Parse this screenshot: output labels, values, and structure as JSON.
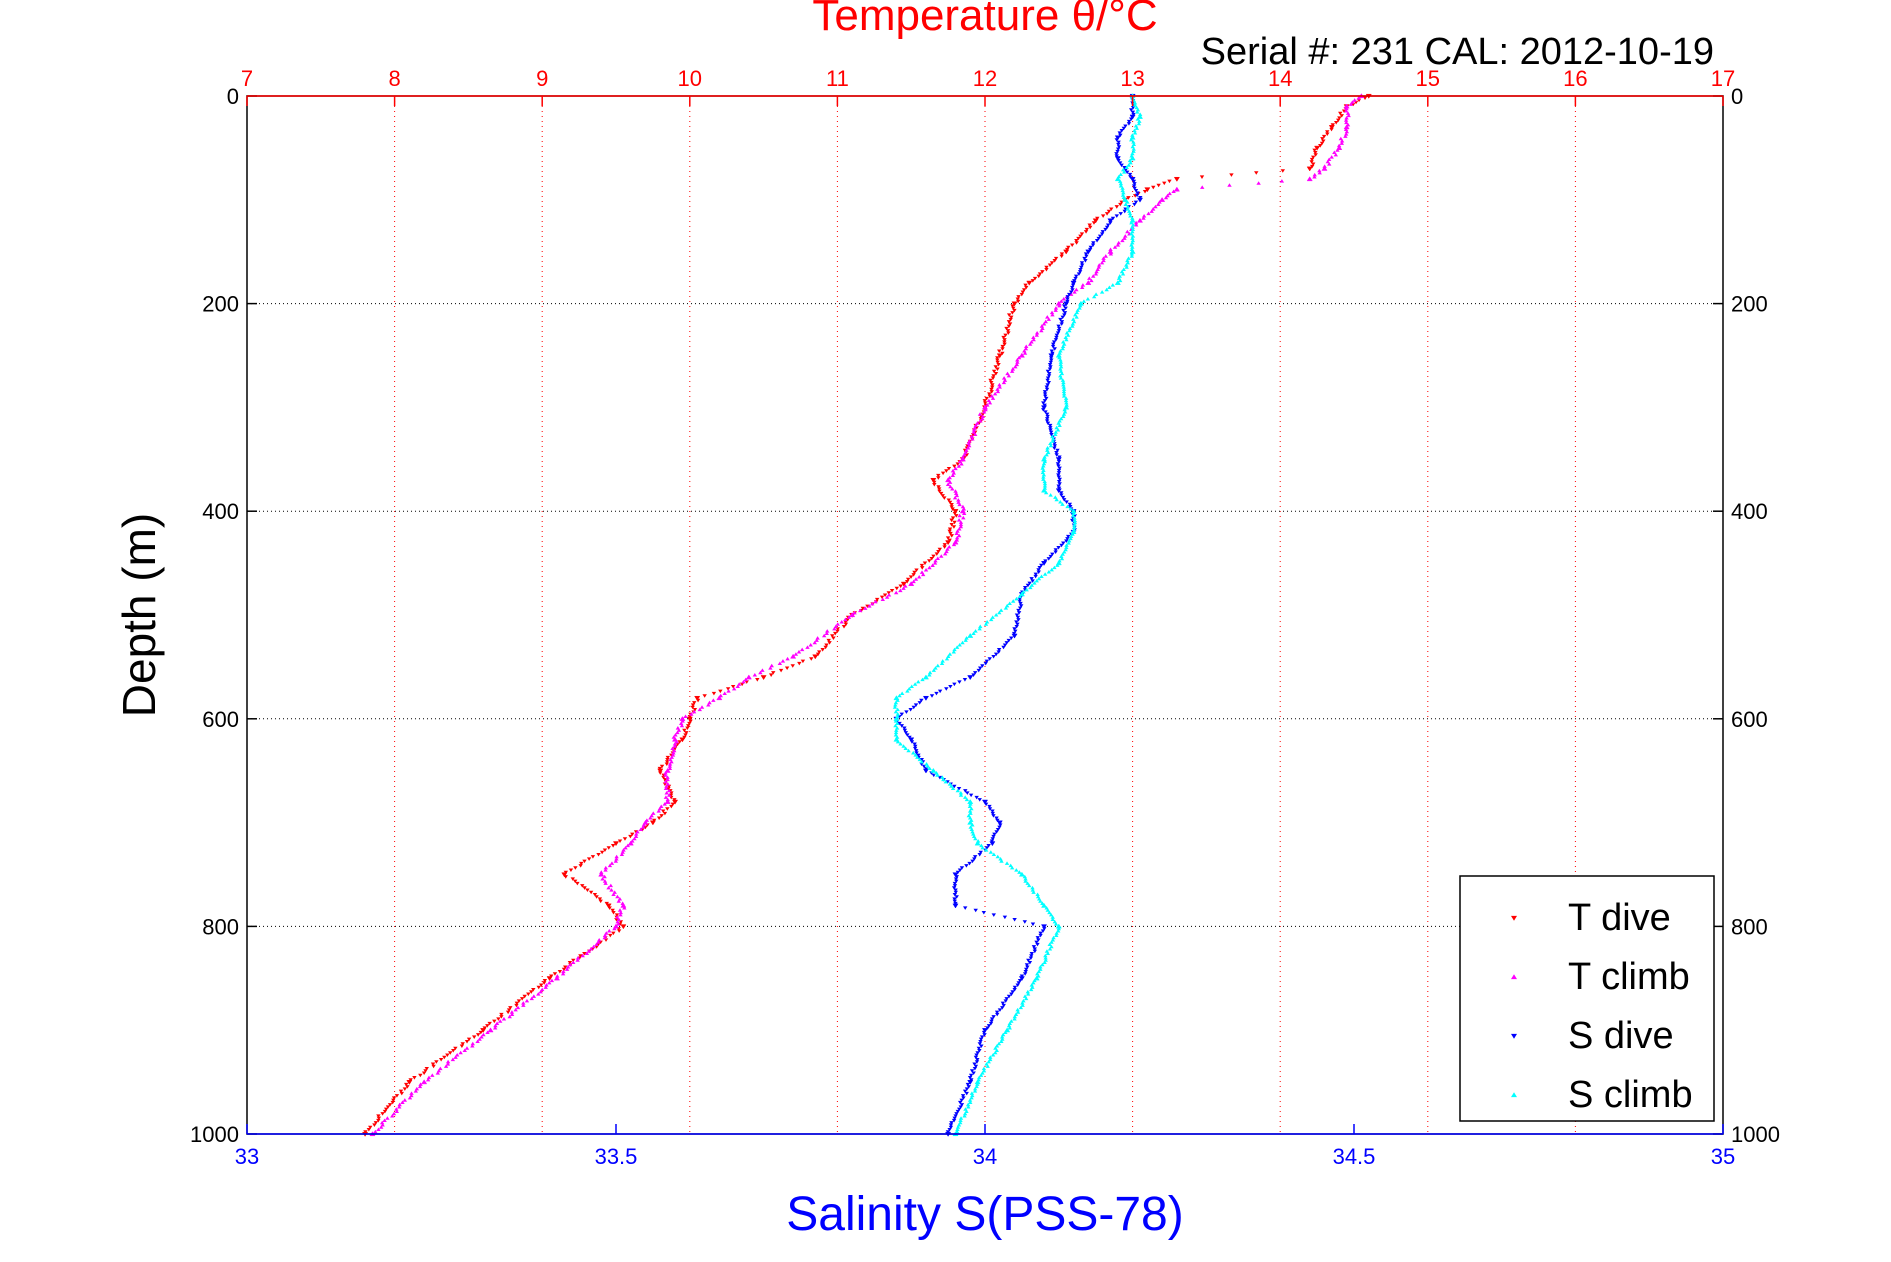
{
  "chart_data": {
    "type": "scatter",
    "title": "Temperature θ/°C",
    "subtitle": "Serial #: 231  CAL: 2012-10-19",
    "ylabel": "Depth (m)",
    "xlabel_bottom": "Salinity S(PSS-78)",
    "xlabel_top": "Temperature θ/°C",
    "ylim": [
      0,
      1000
    ],
    "y_reversed": true,
    "x_bottom_lim": [
      33,
      35
    ],
    "x_top_lim": [
      7,
      17
    ],
    "y_ticks": [
      "0",
      "200",
      "400",
      "600",
      "800",
      "1000"
    ],
    "x_bottom_ticks": [
      "33",
      "33.5",
      "34",
      "34.5",
      "35"
    ],
    "x_top_ticks": [
      "7",
      "8",
      "9",
      "10",
      "11",
      "12",
      "13",
      "14",
      "15",
      "16",
      "17"
    ],
    "grid": true,
    "legend_position": "bottom-right",
    "colors": {
      "temperature_axis": "#ff0000",
      "salinity_axis": "#0000ff",
      "t_dive": "#ff0000",
      "t_climb": "#ff00ff",
      "s_dive": "#0000ff",
      "s_climb": "#00ffff"
    },
    "series": [
      {
        "name": "T dive",
        "axis": "top",
        "color": "#ff0000",
        "marker": "triangle-down",
        "depth": [
          0,
          10,
          30,
          50,
          70,
          80,
          90,
          100,
          120,
          150,
          180,
          200,
          250,
          300,
          350,
          370,
          400,
          430,
          470,
          500,
          540,
          560,
          580,
          600,
          620,
          650,
          680,
          700,
          720,
          750,
          780,
          800,
          850,
          900,
          950,
          1000
        ],
        "temperature": [
          14.6,
          14.45,
          14.35,
          14.25,
          14.2,
          13.3,
          13.1,
          12.95,
          12.75,
          12.55,
          12.3,
          12.2,
          12.1,
          12.0,
          11.85,
          11.65,
          11.8,
          11.75,
          11.45,
          11.1,
          10.85,
          10.5,
          10.05,
          10.0,
          9.95,
          9.8,
          9.9,
          9.75,
          9.5,
          9.15,
          9.45,
          9.55,
          9.05,
          8.6,
          8.1,
          7.8
        ]
      },
      {
        "name": "T climb",
        "axis": "top",
        "color": "#ff00ff",
        "marker": "triangle-up",
        "depth": [
          0,
          10,
          30,
          50,
          70,
          80,
          90,
          100,
          120,
          150,
          180,
          200,
          250,
          300,
          350,
          370,
          400,
          430,
          470,
          500,
          540,
          560,
          580,
          600,
          620,
          650,
          680,
          700,
          720,
          750,
          780,
          800,
          850,
          900,
          950,
          1000
        ],
        "temperature": [
          14.55,
          14.45,
          14.45,
          14.4,
          14.3,
          14.2,
          13.3,
          13.2,
          13.05,
          12.85,
          12.7,
          12.5,
          12.25,
          12.0,
          11.85,
          11.75,
          11.85,
          11.8,
          11.5,
          11.1,
          10.7,
          10.4,
          10.2,
          9.95,
          9.9,
          9.85,
          9.85,
          9.7,
          9.6,
          9.4,
          9.55,
          9.5,
          9.1,
          8.65,
          8.2,
          7.85
        ]
      },
      {
        "name": "S dive",
        "axis": "bottom",
        "color": "#0000ff",
        "marker": "triangle-down",
        "depth": [
          0,
          20,
          40,
          60,
          80,
          100,
          120,
          150,
          180,
          200,
          250,
          300,
          350,
          380,
          400,
          420,
          450,
          480,
          520,
          560,
          580,
          600,
          620,
          650,
          680,
          700,
          720,
          750,
          780,
          800,
          850,
          900,
          950,
          1000
        ],
        "salinity": [
          34.2,
          34.2,
          34.18,
          34.18,
          34.2,
          34.21,
          34.17,
          34.14,
          34.12,
          34.11,
          34.09,
          34.08,
          34.1,
          34.1,
          34.12,
          34.12,
          34.08,
          34.05,
          34.04,
          33.98,
          33.92,
          33.88,
          33.9,
          33.92,
          34.0,
          34.02,
          34.01,
          33.96,
          33.96,
          34.08,
          34.05,
          34.0,
          33.98,
          33.95
        ]
      },
      {
        "name": "S climb",
        "axis": "bottom",
        "color": "#00ffff",
        "marker": "triangle-up",
        "depth": [
          0,
          20,
          40,
          60,
          80,
          100,
          120,
          150,
          180,
          200,
          250,
          300,
          350,
          380,
          400,
          420,
          450,
          480,
          520,
          560,
          580,
          600,
          620,
          650,
          680,
          700,
          720,
          750,
          780,
          800,
          850,
          900,
          950,
          1000
        ],
        "salinity": [
          34.2,
          34.21,
          34.2,
          34.2,
          34.18,
          34.19,
          34.2,
          34.2,
          34.18,
          34.13,
          34.1,
          34.11,
          34.08,
          34.08,
          34.12,
          34.12,
          34.1,
          34.05,
          33.98,
          33.92,
          33.88,
          33.88,
          33.88,
          33.93,
          33.98,
          33.98,
          33.99,
          34.05,
          34.08,
          34.1,
          34.07,
          34.03,
          33.99,
          33.96
        ]
      }
    ]
  },
  "legend": {
    "items": [
      "T dive",
      "T climb",
      "S dive",
      "S climb"
    ]
  }
}
